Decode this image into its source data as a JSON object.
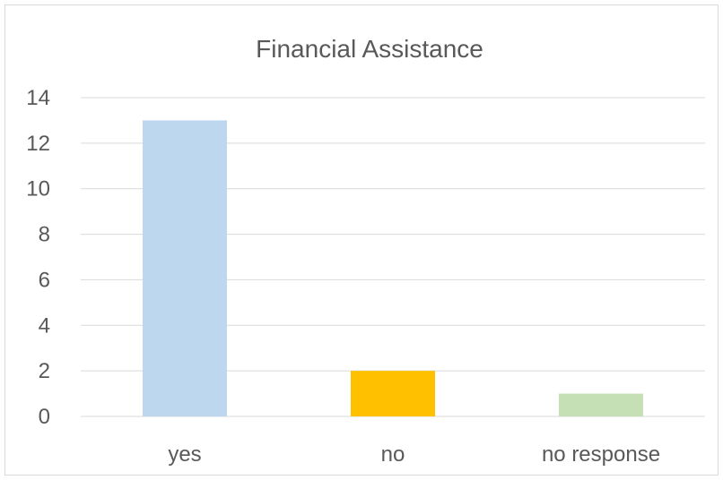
{
  "chart_data": {
    "type": "bar",
    "title": "Financial Assistance",
    "categories": [
      "yes",
      "no",
      "no response"
    ],
    "values": [
      13,
      2,
      1
    ],
    "colors": [
      "#bdd7ee",
      "#ffc000",
      "#c5e0b4"
    ],
    "ylim": [
      0,
      14
    ],
    "yticks": [
      "0",
      "2",
      "4",
      "6",
      "8",
      "10",
      "12",
      "14"
    ],
    "xlabel": "",
    "ylabel": "",
    "grid": true,
    "legend": "none"
  }
}
